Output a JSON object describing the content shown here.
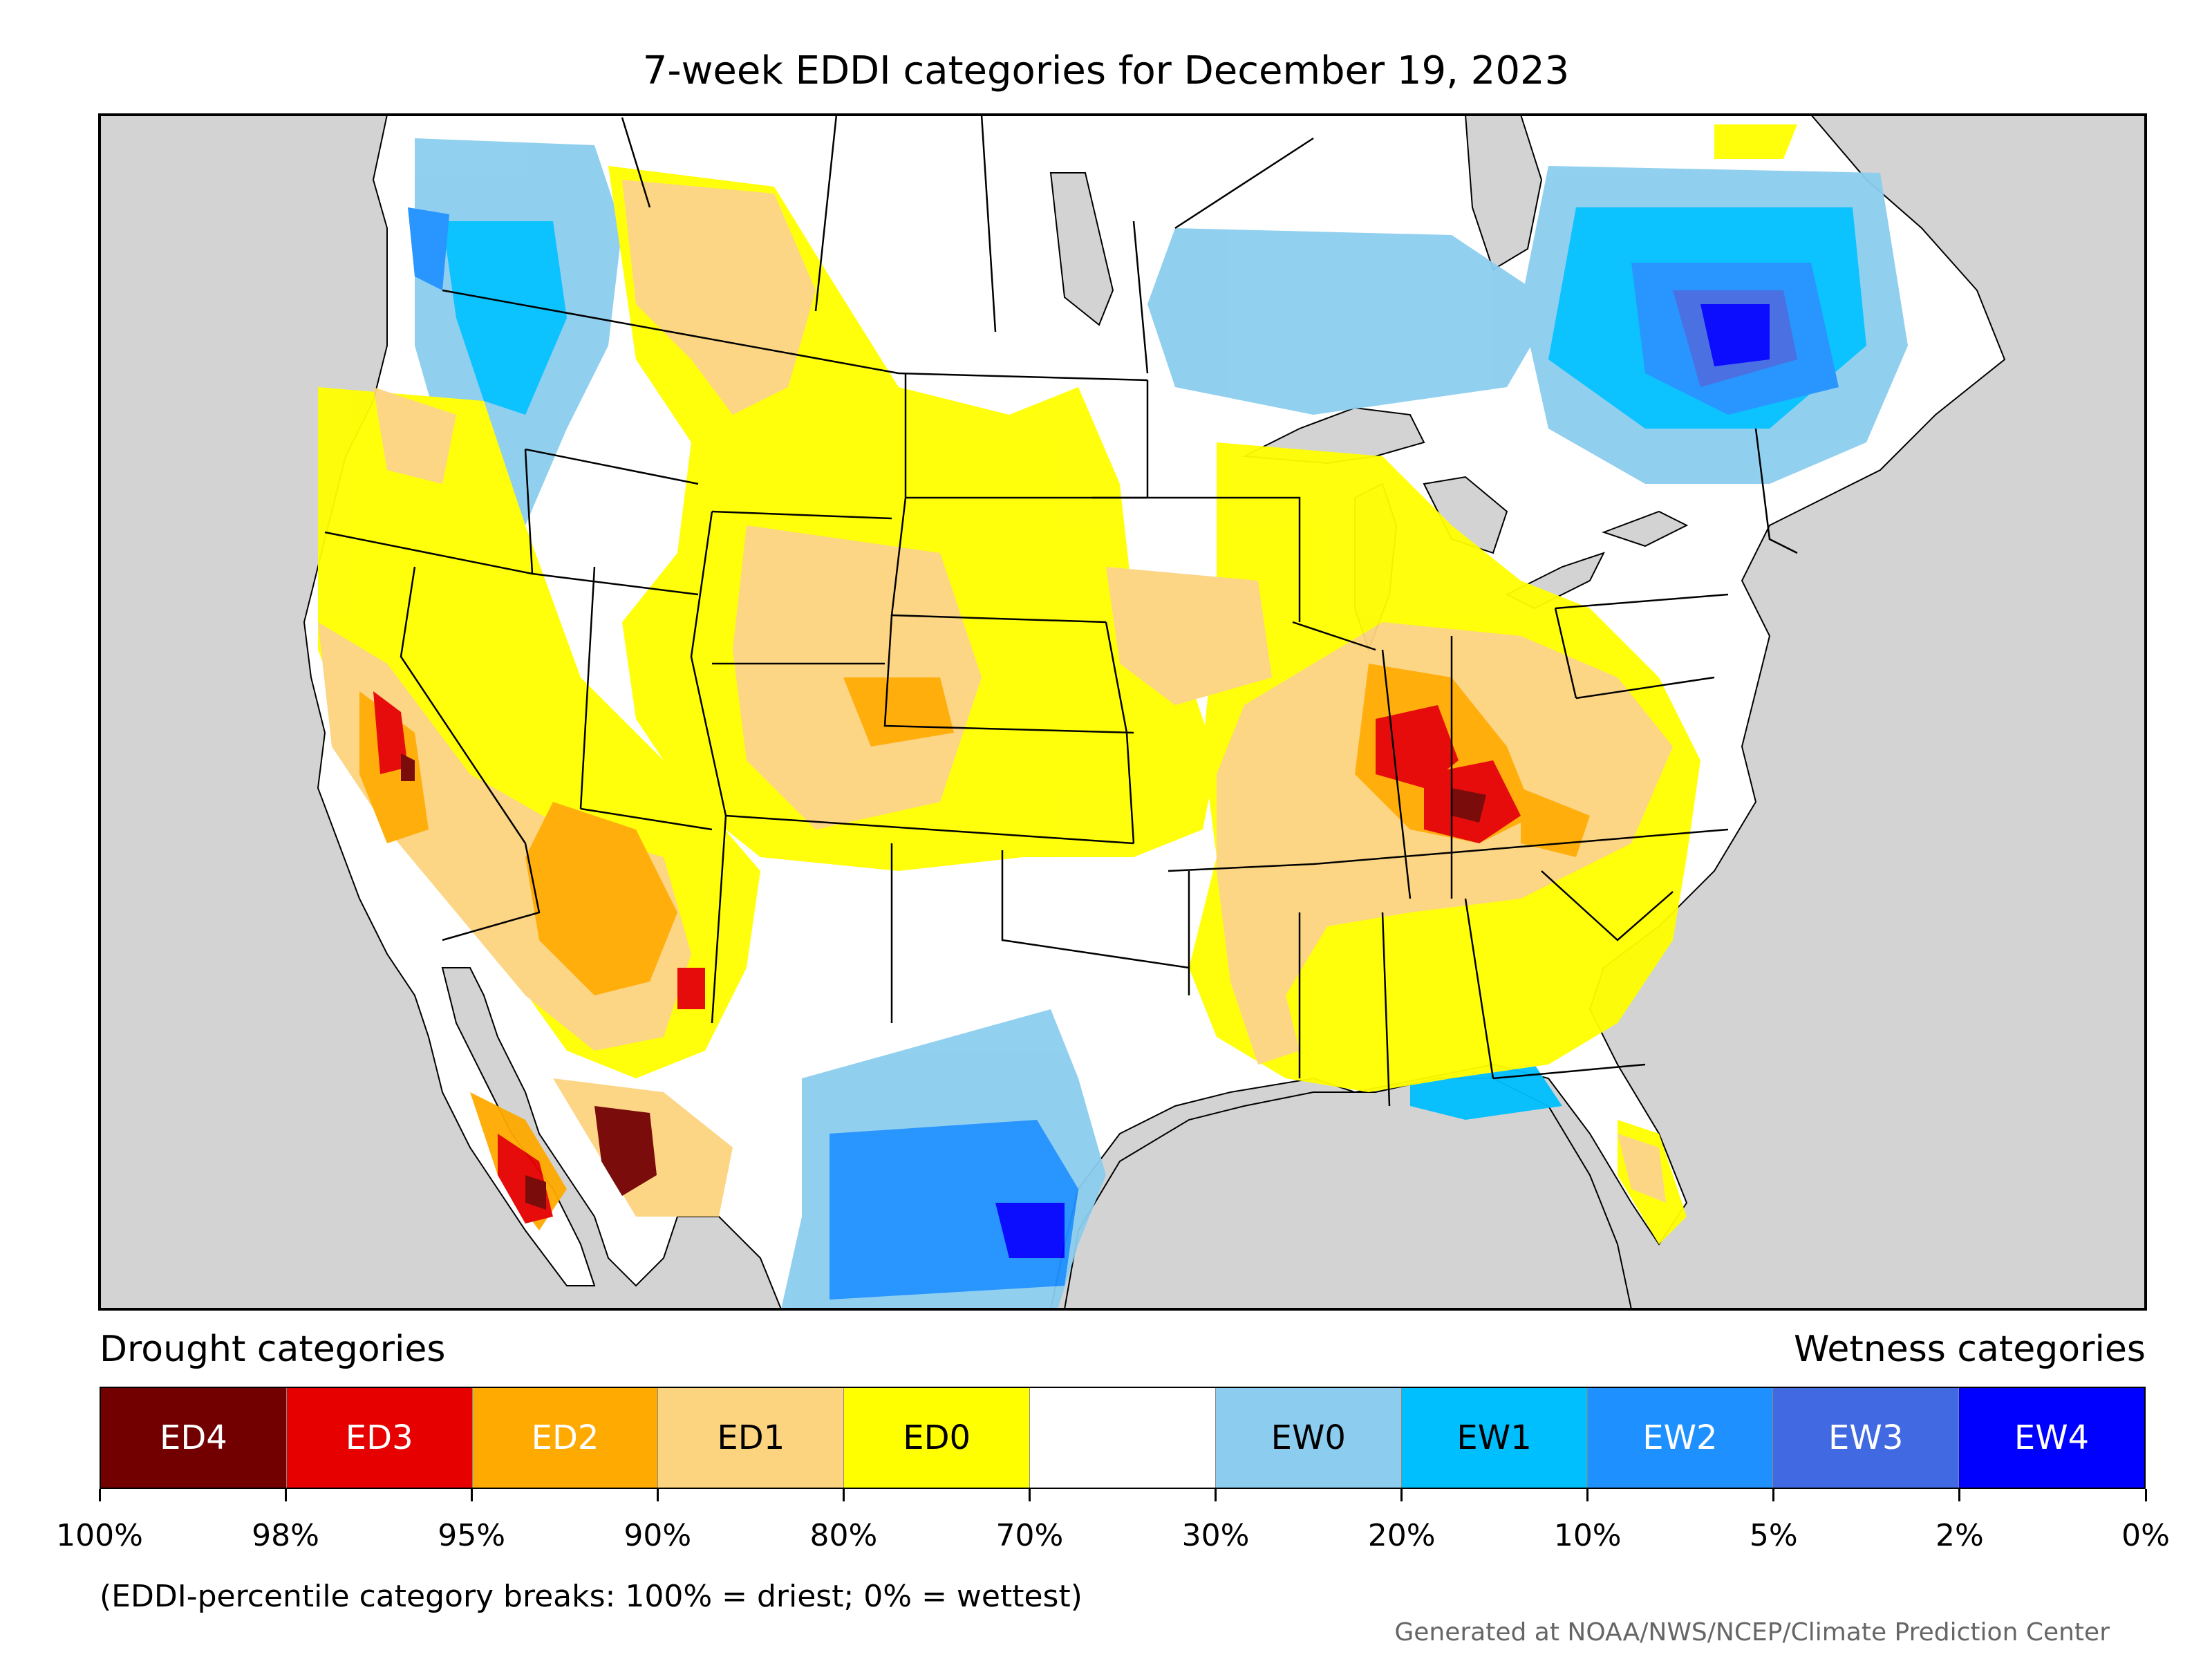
{
  "title": "7-week EDDI categories for December 19, 2023",
  "legend": {
    "drought_heading": "Drought categories",
    "wetness_heading": "Wetness categories",
    "categories": [
      {
        "label": "ED4",
        "color": "#730000",
        "text_color": "#ffffff"
      },
      {
        "label": "ED3",
        "color": "#e60000",
        "text_color": "#ffffff"
      },
      {
        "label": "ED2",
        "color": "#ffaa00",
        "text_color": "#ffffff"
      },
      {
        "label": "ED1",
        "color": "#fcd37f",
        "text_color": "#000000"
      },
      {
        "label": "ED0",
        "color": "#ffff00",
        "text_color": "#000000"
      },
      {
        "label": "",
        "color": "#ffffff",
        "text_color": "#000000"
      },
      {
        "label": "EW0",
        "color": "#8ccdef",
        "text_color": "#000000"
      },
      {
        "label": "EW1",
        "color": "#00bfff",
        "text_color": "#000000"
      },
      {
        "label": "EW2",
        "color": "#1e90ff",
        "text_color": "#ffffff"
      },
      {
        "label": "EW3",
        "color": "#4169e1",
        "text_color": "#ffffff"
      },
      {
        "label": "EW4",
        "color": "#0000ff",
        "text_color": "#ffffff"
      }
    ],
    "breaks": [
      "100%",
      "98%",
      "95%",
      "90%",
      "80%",
      "70%",
      "30%",
      "20%",
      "10%",
      "5%",
      "2%",
      "0%"
    ],
    "note": "(EDDI-percentile category breaks: 100% = driest; 0% = wettest)"
  },
  "credit": "Generated at NOAA/NWS/NCEP/Climate Prediction Center",
  "colors": {
    "ocean_background": "#d3d3d3",
    "land": "#ffffff",
    "border": "#000000"
  }
}
